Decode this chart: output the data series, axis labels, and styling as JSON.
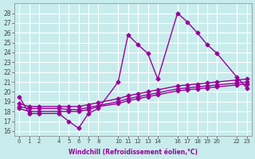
{
  "xlabel": "Windchill (Refroidissement éolien,°C)",
  "ylabel": "",
  "background_color": "#c8ecec",
  "grid_color": "#ffffff",
  "line_color": "#990099",
  "x_ticks": [
    0,
    1,
    2,
    4,
    5,
    6,
    7,
    8,
    10,
    11,
    12,
    13,
    14,
    16,
    17,
    18,
    19,
    20,
    22,
    23
  ],
  "ylim": [
    15.5,
    29
  ],
  "xlim": [
    -0.5,
    23.5
  ],
  "yticks": [
    16,
    17,
    18,
    19,
    20,
    21,
    22,
    23,
    24,
    25,
    26,
    27,
    28
  ],
  "series": [
    {
      "x": [
        0,
        1,
        2,
        4,
        5,
        6,
        7,
        8,
        10,
        11,
        12,
        13,
        14,
        16,
        17,
        18,
        19,
        20,
        22,
        23
      ],
      "y": [
        19.5,
        17.8,
        17.8,
        17.8,
        17.0,
        16.3,
        17.8,
        18.3,
        21.0,
        25.8,
        24.8,
        23.9,
        21.3,
        28.0,
        27.1,
        26.0,
        24.8,
        23.9,
        21.5,
        20.4
      ],
      "style": "-",
      "marker": "D",
      "markersize": 2.5,
      "linewidth": 1.0
    },
    {
      "x": [
        0,
        1,
        2,
        4,
        5,
        6,
        7,
        8,
        10,
        11,
        12,
        13,
        14,
        16,
        17,
        18,
        19,
        20,
        22,
        23
      ],
      "y": [
        18.8,
        18.5,
        18.5,
        18.5,
        18.5,
        18.5,
        18.7,
        18.9,
        19.3,
        19.6,
        19.8,
        20.0,
        20.2,
        20.6,
        20.7,
        20.8,
        20.9,
        21.0,
        21.2,
        21.3
      ],
      "style": "-",
      "marker": "D",
      "markersize": 2.5,
      "linewidth": 1.0
    },
    {
      "x": [
        0,
        1,
        2,
        4,
        5,
        6,
        7,
        8,
        10,
        11,
        12,
        13,
        14,
        16,
        17,
        18,
        19,
        20,
        22,
        23
      ],
      "y": [
        18.5,
        18.3,
        18.3,
        18.3,
        18.2,
        18.2,
        18.4,
        18.6,
        19.0,
        19.3,
        19.5,
        19.7,
        19.9,
        20.3,
        20.4,
        20.5,
        20.6,
        20.7,
        20.9,
        21.0
      ],
      "style": "-",
      "marker": "D",
      "markersize": 2.5,
      "linewidth": 1.0
    },
    {
      "x": [
        0,
        1,
        2,
        4,
        5,
        6,
        7,
        8,
        10,
        11,
        12,
        13,
        14,
        16,
        17,
        18,
        19,
        20,
        22,
        23
      ],
      "y": [
        18.3,
        18.0,
        18.0,
        18.0,
        18.0,
        18.0,
        18.2,
        18.5,
        18.8,
        19.1,
        19.3,
        19.5,
        19.7,
        20.1,
        20.2,
        20.3,
        20.4,
        20.5,
        20.7,
        20.8
      ],
      "style": "-",
      "marker": "D",
      "markersize": 2.5,
      "linewidth": 1.0
    }
  ]
}
